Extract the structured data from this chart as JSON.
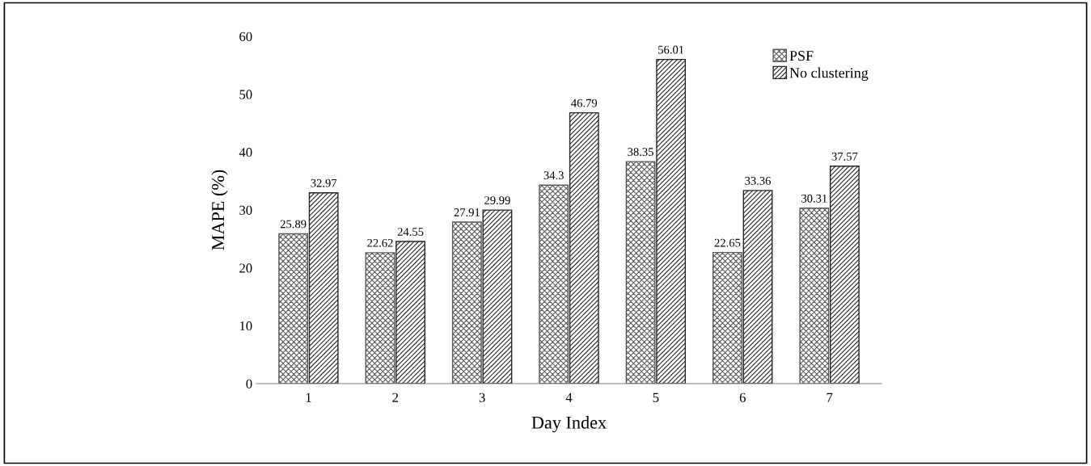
{
  "chart_data": {
    "type": "bar",
    "xlabel": "Day Index",
    "ylabel": "MAPE (%)",
    "categories": [
      "1",
      "2",
      "3",
      "4",
      "5",
      "6",
      "7"
    ],
    "series": [
      {
        "name": "PSF",
        "color": "#595959",
        "values": [
          25.89,
          22.62,
          27.91,
          34.3,
          38.35,
          22.65,
          30.31
        ]
      },
      {
        "name": "No clustering",
        "color": "#262626",
        "values": [
          32.97,
          24.55,
          29.99,
          46.79,
          56.01,
          33.36,
          37.57
        ]
      }
    ],
    "ylim": [
      0,
      60
    ],
    "yticks": [
      0,
      10,
      20,
      30,
      40,
      50,
      60
    ],
    "grid": false,
    "legend": "top right",
    "data_labels": true
  }
}
